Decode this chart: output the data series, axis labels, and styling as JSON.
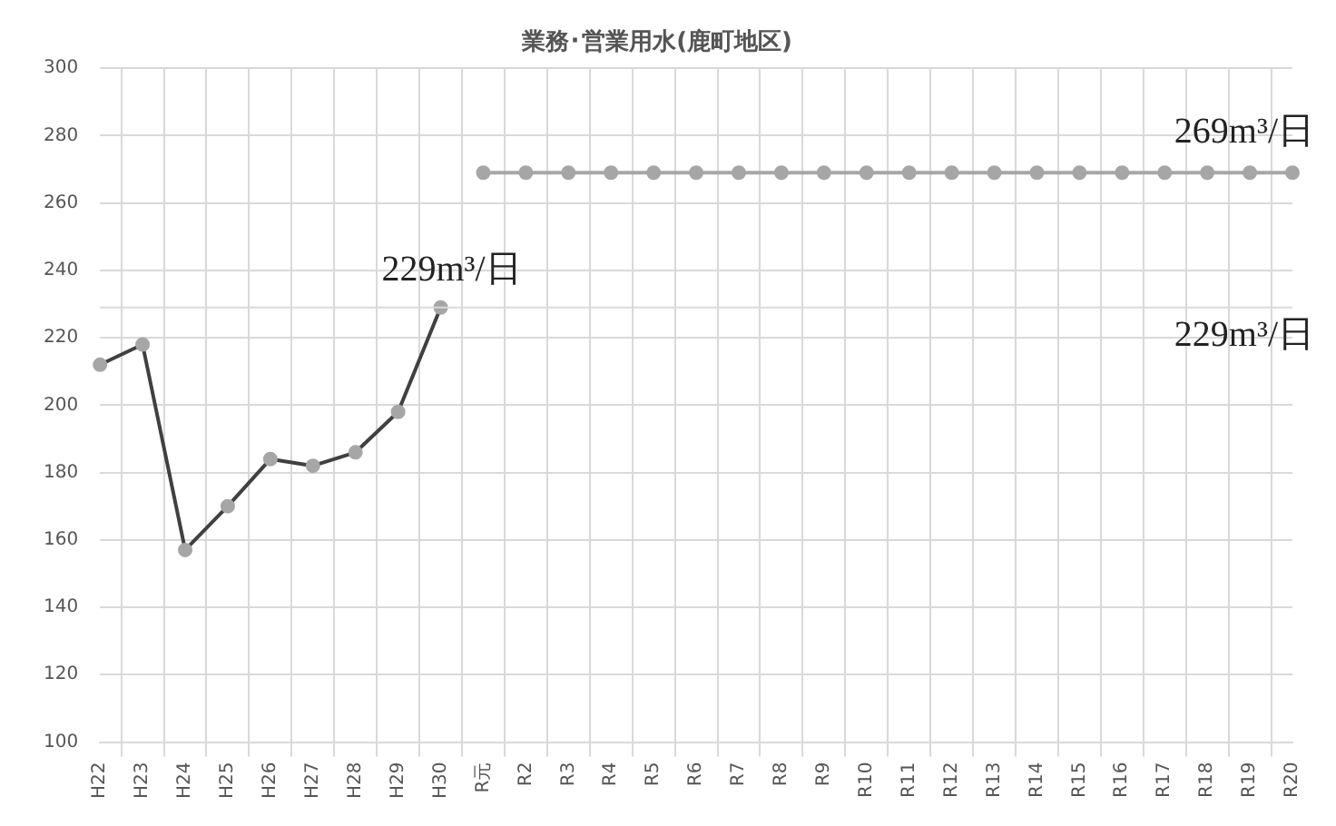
{
  "chart_data": {
    "type": "line",
    "title": "業務･営業用水(鹿町地区)",
    "categories": [
      "H22",
      "H23",
      "H24",
      "H25",
      "H26",
      "H27",
      "H28",
      "H29",
      "H30",
      "R元",
      "R2",
      "R3",
      "R4",
      "R5",
      "R6",
      "R7",
      "R8",
      "R9",
      "R10",
      "R11",
      "R12",
      "R13",
      "R14",
      "R15",
      "R16",
      "R17",
      "R18",
      "R19",
      "R20"
    ],
    "series": [
      {
        "color": "#404040",
        "values": [
          212,
          218,
          157,
          170,
          184,
          182,
          186,
          198,
          229,
          null,
          null,
          null,
          null,
          null,
          null,
          null,
          null,
          null,
          null,
          null,
          null,
          null,
          null,
          null,
          null,
          null,
          null,
          null,
          null
        ]
      },
      {
        "color": "#a6a6a6",
        "values": [
          null,
          null,
          null,
          null,
          null,
          null,
          null,
          null,
          null,
          269,
          269,
          269,
          269,
          269,
          269,
          269,
          269,
          269,
          269,
          269,
          269,
          269,
          269,
          269,
          269,
          269,
          269,
          269,
          269
        ]
      }
    ],
    "ylim": [
      100,
      300
    ],
    "yticks": [
      100,
      120,
      140,
      160,
      180,
      200,
      220,
      240,
      260,
      280,
      300
    ],
    "ref_lines": [
      {
        "axis": "y",
        "value": 229,
        "label": "229m³/日",
        "color": "#d9d9d9"
      }
    ],
    "annotations": [
      {
        "text": "229m³/日",
        "x": "H30",
        "y": 229
      },
      {
        "text": "269m³/日",
        "x": "R20",
        "y": 269
      }
    ],
    "grid": true,
    "legend": false,
    "marker": "circle",
    "line_style": "solid"
  }
}
